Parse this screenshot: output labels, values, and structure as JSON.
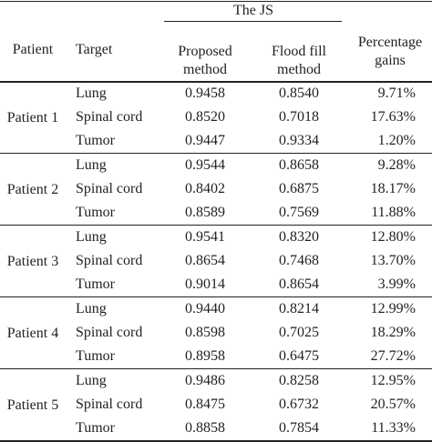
{
  "table": {
    "header": {
      "group": "The JS",
      "columns": [
        "Patient",
        "Target",
        "Proposed method",
        "Flood fill method",
        "Percentage gains"
      ]
    },
    "groups": [
      {
        "patient": "Patient 1",
        "rows": [
          [
            "Lung",
            "0.9458",
            "0.8540",
            "9.71%"
          ],
          [
            "Spinal cord",
            "0.8520",
            "0.7018",
            "17.63%"
          ],
          [
            "Tumor",
            "0.9447",
            "0.9334",
            "1.20%"
          ]
        ]
      },
      {
        "patient": "Patient 2",
        "rows": [
          [
            "Lung",
            "0.9544",
            "0.8658",
            "9.28%"
          ],
          [
            "Spinal cord",
            "0.8402",
            "0.6875",
            "18.17%"
          ],
          [
            "Tumor",
            "0.8589",
            "0.7569",
            "11.88%"
          ]
        ]
      },
      {
        "patient": "Patient 3",
        "rows": [
          [
            "Lung",
            "0.9541",
            "0.8320",
            "12.80%"
          ],
          [
            "Spinal cord",
            "0.8654",
            "0.7468",
            "13.70%"
          ],
          [
            "Tumor",
            "0.9014",
            "0.8654",
            "3.99%"
          ]
        ]
      },
      {
        "patient": "Patient 4",
        "rows": [
          [
            "Lung",
            "0.9440",
            "0.8214",
            "12.99%"
          ],
          [
            "Spinal cord",
            "0.8598",
            "0.7025",
            "18.29%"
          ],
          [
            "Tumor",
            "0.8958",
            "0.6475",
            "27.72%"
          ]
        ]
      },
      {
        "patient": "Patient 5",
        "rows": [
          [
            "Lung",
            "0.9486",
            "0.8258",
            "12.95%"
          ],
          [
            "Spinal cord",
            "0.8475",
            "0.6732",
            "20.57%"
          ],
          [
            "Tumor",
            "0.8858",
            "0.7854",
            "11.33%"
          ]
        ]
      }
    ]
  }
}
